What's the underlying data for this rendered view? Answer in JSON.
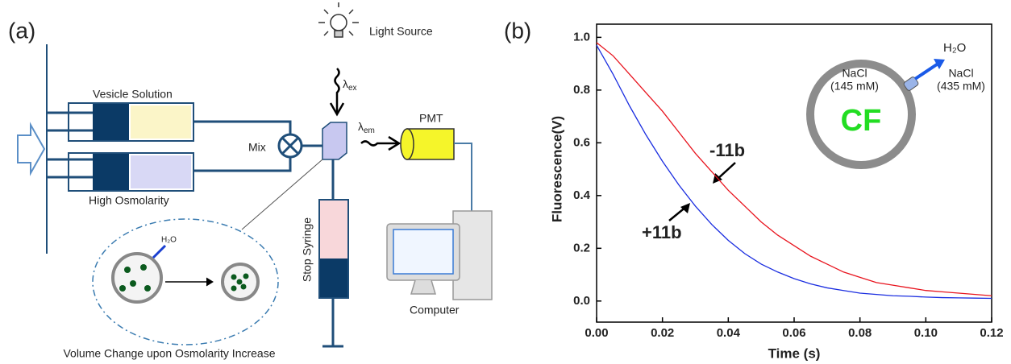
{
  "panel_labels": [
    "(a)",
    "(b)"
  ],
  "diagram": {
    "vesicle_solution": "Vesicle Solution",
    "high_osmolarity": "High Osmolarity",
    "mix": "Mix",
    "light_source": "Light Source",
    "excitation": {
      "symbol": "λ",
      "sub": "ex"
    },
    "emission": {
      "symbol": "λ",
      "sub": "em"
    },
    "pmt": "PMT",
    "stop_syringe": "Stop Syringe",
    "computer": "Computer",
    "water": "H₂O",
    "caption": "Volume Change upon Osmolarity Increase"
  },
  "chart_data": {
    "type": "line",
    "x_label": "Time (s)",
    "y_label": "Fluorescence(V)",
    "x": [
      0,
      0.005,
      0.01,
      0.015,
      0.02,
      0.025,
      0.03,
      0.035,
      0.04,
      0.045,
      0.05,
      0.055,
      0.06,
      0.065,
      0.07,
      0.075,
      0.08,
      0.085,
      0.09,
      0.095,
      0.1,
      0.105,
      0.11,
      0.115,
      0.12
    ],
    "series": [
      {
        "name": "-11b",
        "color": "#e8141e",
        "values": [
          0.98,
          0.93,
          0.86,
          0.79,
          0.72,
          0.64,
          0.56,
          0.49,
          0.42,
          0.36,
          0.3,
          0.25,
          0.21,
          0.17,
          0.14,
          0.11,
          0.09,
          0.07,
          0.06,
          0.05,
          0.04,
          0.035,
          0.03,
          0.025,
          0.02
        ]
      },
      {
        "name": "+11b",
        "color": "#1a2de0",
        "values": [
          0.97,
          0.86,
          0.74,
          0.63,
          0.53,
          0.44,
          0.36,
          0.29,
          0.23,
          0.18,
          0.14,
          0.11,
          0.085,
          0.065,
          0.05,
          0.04,
          0.03,
          0.025,
          0.02,
          0.018,
          0.015,
          0.013,
          0.012,
          0.011,
          0.01
        ]
      }
    ],
    "xlim": [
      0,
      0.12
    ],
    "ylim": [
      -0.08,
      1.05
    ],
    "xticks": [
      {
        "value": 0,
        "label": "0.00"
      },
      0.02,
      0.04,
      0.06,
      0.08,
      {
        "value": 0.1,
        "label": "0.10"
      },
      0.12
    ],
    "yticks": [
      {
        "value": 0,
        "label": "0.0"
      },
      0.2,
      0.4,
      0.6,
      0.8,
      {
        "value": 1,
        "label": "1.0"
      }
    ],
    "inset": {
      "water": "H₂O",
      "inside_salt": "NaCl",
      "inside_conc": "(145 mM)",
      "outside_salt": "NaCl",
      "outside_conc": "(435 mM)",
      "dye": "CF"
    }
  }
}
